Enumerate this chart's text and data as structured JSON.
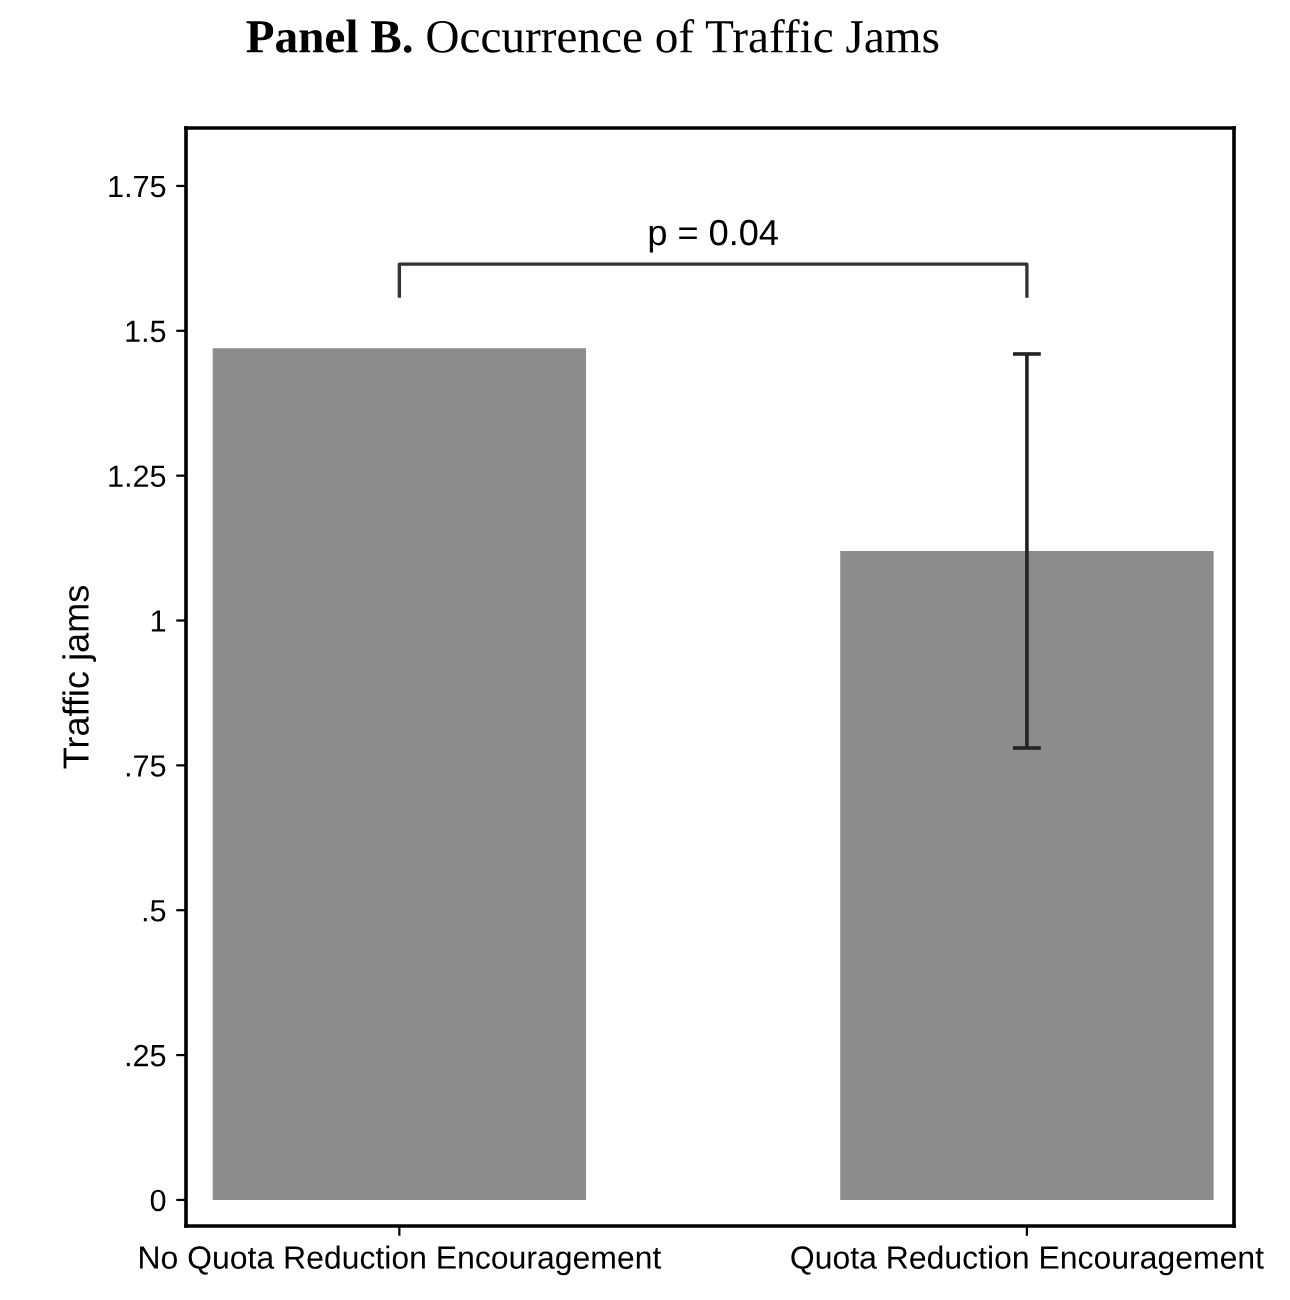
{
  "chart_data": {
    "type": "bar",
    "title": "Panel B. Occurrence of Traffic Jams",
    "ylabel": "Traffic jams",
    "categories": [
      "No Quota Reduction Encouragement",
      "Quota Reduction Encouragement"
    ],
    "values": [
      1.47,
      1.12
    ],
    "color": "#8c8c8c",
    "errors": [
      null,
      [
        0.78,
        1.46
      ]
    ],
    "ylim": [
      -0.045,
      1.85
    ],
    "yticks": [
      0,
      {
        "value": 0.25,
        "label": ".25"
      },
      {
        "value": 0.5,
        "label": ".5"
      },
      {
        "value": 0.75,
        "label": ".75"
      },
      1,
      1.25,
      1.5,
      1.75
    ],
    "grid": false,
    "annotations": [
      "p = 0.04"
    ]
  }
}
